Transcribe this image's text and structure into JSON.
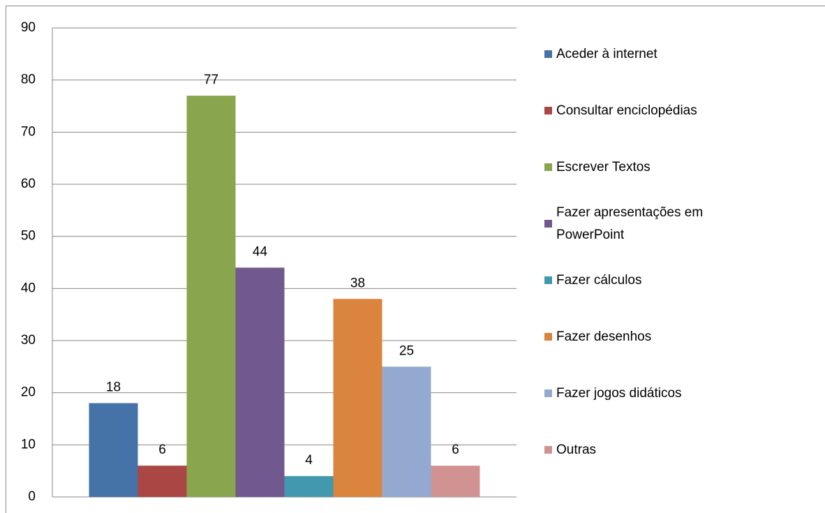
{
  "chart_data": {
    "type": "bar",
    "categories": [
      null
    ],
    "series": [
      {
        "name": "Aceder à internet",
        "color": "#4572a7",
        "values": [
          18
        ]
      },
      {
        "name": "Consultar enciclopédias",
        "color": "#aa4643",
        "values": [
          6
        ]
      },
      {
        "name": "Escrever Textos",
        "color": "#89a54e",
        "values": [
          77
        ]
      },
      {
        "name": "Fazer apresentações em PowerPoint",
        "color": "#71588f",
        "values": [
          44
        ]
      },
      {
        "name": "Fazer cálculos",
        "color": "#4198af",
        "values": [
          4
        ]
      },
      {
        "name": "Fazer desenhos",
        "color": "#db843d",
        "values": [
          38
        ]
      },
      {
        "name": "Fazer jogos didáticos",
        "color": "#93a9cf",
        "values": [
          25
        ]
      },
      {
        "name": "Outras",
        "color": "#d19392",
        "values": [
          6
        ]
      }
    ],
    "ylim": [
      0,
      90
    ],
    "yticks": [
      0,
      10,
      20,
      30,
      40,
      50,
      60,
      70,
      80,
      90
    ],
    "grid": true,
    "legend": "right"
  }
}
